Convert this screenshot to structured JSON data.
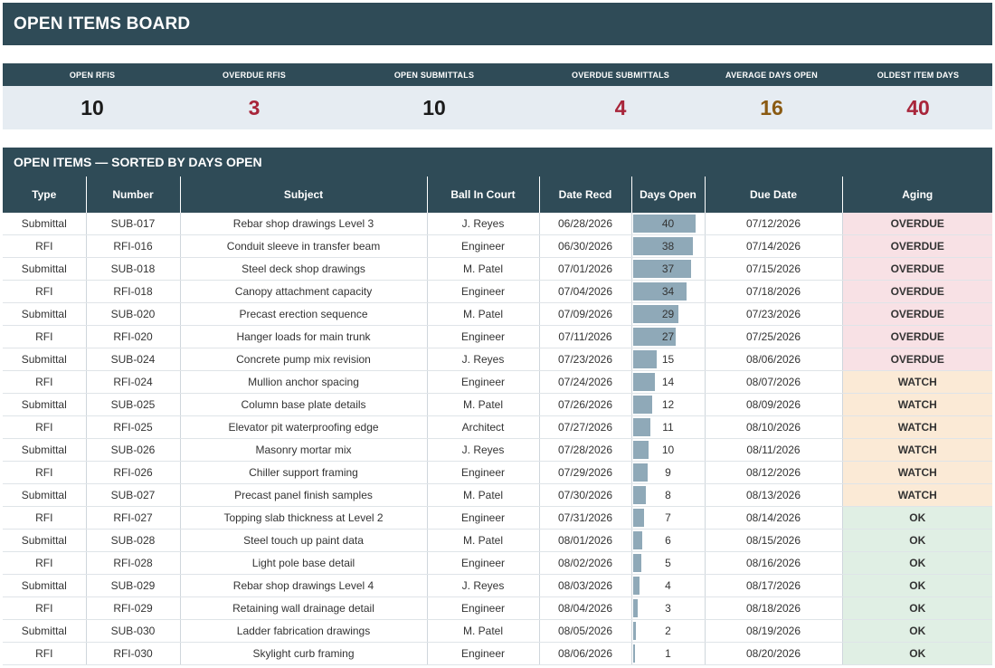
{
  "header": {
    "title": "OPEN ITEMS BOARD"
  },
  "kpis": [
    {
      "label": "OPEN RFIS",
      "value": "10",
      "color": "#1b1b1b"
    },
    {
      "label": "OVERDUE RFIS",
      "value": "3",
      "color": "#a8253a"
    },
    {
      "label": "OPEN SUBMITTALS",
      "value": "10",
      "color": "#1b1b1b"
    },
    {
      "label": "OVERDUE SUBMITTALS",
      "value": "4",
      "color": "#a8253a"
    },
    {
      "label": "AVERAGE DAYS OPEN",
      "value": "16",
      "color": "#8a5a12"
    },
    {
      "label": "OLDEST ITEM DAYS",
      "value": "40",
      "color": "#a8253a"
    }
  ],
  "section": {
    "title": "OPEN ITEMS — SORTED BY DAYS OPEN"
  },
  "table": {
    "columns": [
      "Type",
      "Number",
      "Subject",
      "Ball In Court",
      "Date Recd",
      "Days Open",
      "Due Date",
      "Aging"
    ],
    "max_days": 40,
    "rows": [
      {
        "type": "Submittal",
        "number": "SUB-017",
        "subject": "Rebar shop drawings Level 3",
        "ball": "J. Reyes",
        "recd": "06/28/2026",
        "days": 40,
        "due": "07/12/2026",
        "aging": "OVERDUE"
      },
      {
        "type": "RFI",
        "number": "RFI-016",
        "subject": "Conduit sleeve in transfer beam",
        "ball": "Engineer",
        "recd": "06/30/2026",
        "days": 38,
        "due": "07/14/2026",
        "aging": "OVERDUE"
      },
      {
        "type": "Submittal",
        "number": "SUB-018",
        "subject": "Steel deck shop drawings",
        "ball": "M. Patel",
        "recd": "07/01/2026",
        "days": 37,
        "due": "07/15/2026",
        "aging": "OVERDUE"
      },
      {
        "type": "RFI",
        "number": "RFI-018",
        "subject": "Canopy attachment capacity",
        "ball": "Engineer",
        "recd": "07/04/2026",
        "days": 34,
        "due": "07/18/2026",
        "aging": "OVERDUE"
      },
      {
        "type": "Submittal",
        "number": "SUB-020",
        "subject": "Precast erection sequence",
        "ball": "M. Patel",
        "recd": "07/09/2026",
        "days": 29,
        "due": "07/23/2026",
        "aging": "OVERDUE"
      },
      {
        "type": "RFI",
        "number": "RFI-020",
        "subject": "Hanger loads for main trunk",
        "ball": "Engineer",
        "recd": "07/11/2026",
        "days": 27,
        "due": "07/25/2026",
        "aging": "OVERDUE"
      },
      {
        "type": "Submittal",
        "number": "SUB-024",
        "subject": "Concrete pump mix revision",
        "ball": "J. Reyes",
        "recd": "07/23/2026",
        "days": 15,
        "due": "08/06/2026",
        "aging": "OVERDUE"
      },
      {
        "type": "RFI",
        "number": "RFI-024",
        "subject": "Mullion anchor spacing",
        "ball": "Engineer",
        "recd": "07/24/2026",
        "days": 14,
        "due": "08/07/2026",
        "aging": "WATCH"
      },
      {
        "type": "Submittal",
        "number": "SUB-025",
        "subject": "Column base plate details",
        "ball": "M. Patel",
        "recd": "07/26/2026",
        "days": 12,
        "due": "08/09/2026",
        "aging": "WATCH"
      },
      {
        "type": "RFI",
        "number": "RFI-025",
        "subject": "Elevator pit waterproofing edge",
        "ball": "Architect",
        "recd": "07/27/2026",
        "days": 11,
        "due": "08/10/2026",
        "aging": "WATCH"
      },
      {
        "type": "Submittal",
        "number": "SUB-026",
        "subject": "Masonry mortar mix",
        "ball": "J. Reyes",
        "recd": "07/28/2026",
        "days": 10,
        "due": "08/11/2026",
        "aging": "WATCH"
      },
      {
        "type": "RFI",
        "number": "RFI-026",
        "subject": "Chiller support framing",
        "ball": "Engineer",
        "recd": "07/29/2026",
        "days": 9,
        "due": "08/12/2026",
        "aging": "WATCH"
      },
      {
        "type": "Submittal",
        "number": "SUB-027",
        "subject": "Precast panel finish samples",
        "ball": "M. Patel",
        "recd": "07/30/2026",
        "days": 8,
        "due": "08/13/2026",
        "aging": "WATCH"
      },
      {
        "type": "RFI",
        "number": "RFI-027",
        "subject": "Topping slab thickness at Level 2",
        "ball": "Engineer",
        "recd": "07/31/2026",
        "days": 7,
        "due": "08/14/2026",
        "aging": "OK"
      },
      {
        "type": "Submittal",
        "number": "SUB-028",
        "subject": "Steel touch up paint data",
        "ball": "M. Patel",
        "recd": "08/01/2026",
        "days": 6,
        "due": "08/15/2026",
        "aging": "OK"
      },
      {
        "type": "RFI",
        "number": "RFI-028",
        "subject": "Light pole base detail",
        "ball": "Engineer",
        "recd": "08/02/2026",
        "days": 5,
        "due": "08/16/2026",
        "aging": "OK"
      },
      {
        "type": "Submittal",
        "number": "SUB-029",
        "subject": "Rebar shop drawings Level 4",
        "ball": "J. Reyes",
        "recd": "08/03/2026",
        "days": 4,
        "due": "08/17/2026",
        "aging": "OK"
      },
      {
        "type": "RFI",
        "number": "RFI-029",
        "subject": "Retaining wall drainage detail",
        "ball": "Engineer",
        "recd": "08/04/2026",
        "days": 3,
        "due": "08/18/2026",
        "aging": "OK"
      },
      {
        "type": "Submittal",
        "number": "SUB-030",
        "subject": "Ladder fabrication drawings",
        "ball": "M. Patel",
        "recd": "08/05/2026",
        "days": 2,
        "due": "08/19/2026",
        "aging": "OK"
      },
      {
        "type": "RFI",
        "number": "RFI-030",
        "subject": "Skylight curb framing",
        "ball": "Engineer",
        "recd": "08/06/2026",
        "days": 1,
        "due": "08/20/2026",
        "aging": "OK"
      }
    ]
  }
}
